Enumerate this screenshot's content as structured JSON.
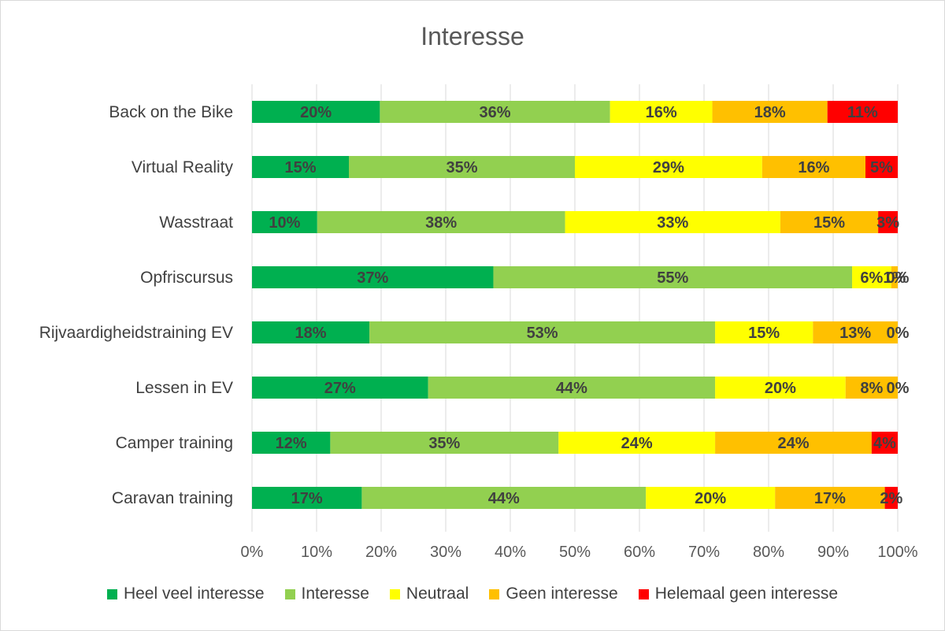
{
  "chart_data": {
    "type": "bar",
    "orientation": "horizontal",
    "stacked": "100%",
    "title": "Interesse",
    "categories": [
      "Back on the Bike",
      "Virtual Reality",
      "Wasstraat",
      "Opfriscursus",
      "Rijvaardigheidstraining EV",
      "Lessen in EV",
      "Camper training",
      "Caravan training"
    ],
    "series": [
      {
        "name": "Heel veel interesse",
        "color": "#00b050",
        "values": [
          20,
          15,
          10,
          37,
          18,
          27,
          12,
          17
        ],
        "labels": [
          "20%",
          "15%",
          "10%",
          "37%",
          "18%",
          "27%",
          "12%",
          "17%"
        ]
      },
      {
        "name": "Interesse",
        "color": "#92d050",
        "values": [
          36,
          35,
          38,
          55,
          53,
          44,
          35,
          44
        ],
        "labels": [
          "36%",
          "35%",
          "38%",
          "55%",
          "53%",
          "44%",
          "35%",
          "44%"
        ]
      },
      {
        "name": "Neutraal",
        "color": "#ffff00",
        "values": [
          16,
          29,
          33,
          6,
          15,
          20,
          24,
          20
        ],
        "labels": [
          "16%",
          "29%",
          "33%",
          "6%",
          "15%",
          "20%",
          "24%",
          "20%"
        ]
      },
      {
        "name": "Geen interesse",
        "color": "#ffc000",
        "values": [
          18,
          16,
          15,
          1,
          13,
          8,
          24,
          17
        ],
        "labels": [
          "18%",
          "16%",
          "15%",
          "1%",
          "13%",
          "8%",
          "24%",
          "17%"
        ]
      },
      {
        "name": "Helemaal geen interesse",
        "color": "#ff0000",
        "values": [
          11,
          5,
          3,
          0,
          0,
          0,
          4,
          2
        ],
        "labels": [
          "11%",
          "5%",
          "3%",
          "0%",
          "0%",
          "0%",
          "4%",
          "2%"
        ]
      }
    ],
    "xlim": [
      0,
      100
    ],
    "x_ticks": [
      "0%",
      "10%",
      "20%",
      "30%",
      "40%",
      "50%",
      "60%",
      "70%",
      "80%",
      "90%",
      "100%"
    ],
    "grid": true,
    "legend_position": "bottom"
  }
}
